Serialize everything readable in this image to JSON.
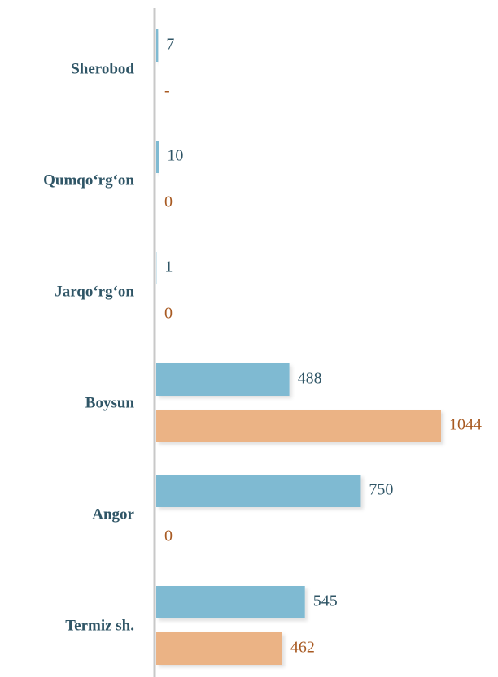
{
  "chart_data": {
    "type": "bar",
    "orientation": "horizontal",
    "categories": [
      "Sherobod",
      "Qumqo‘rg‘on",
      "Jarqo‘rg‘on",
      "Boysun",
      "Angor",
      "Termiz sh."
    ],
    "series": [
      {
        "color": "#7fbad2",
        "values": [
          7,
          10,
          1,
          488,
          750,
          545
        ]
      },
      {
        "color": "#ebb385",
        "values": [
          null,
          0,
          0,
          1044,
          0,
          462
        ],
        "value_labels": [
          "-",
          "0",
          "0",
          "1044",
          "0",
          "462"
        ]
      }
    ]
  }
}
